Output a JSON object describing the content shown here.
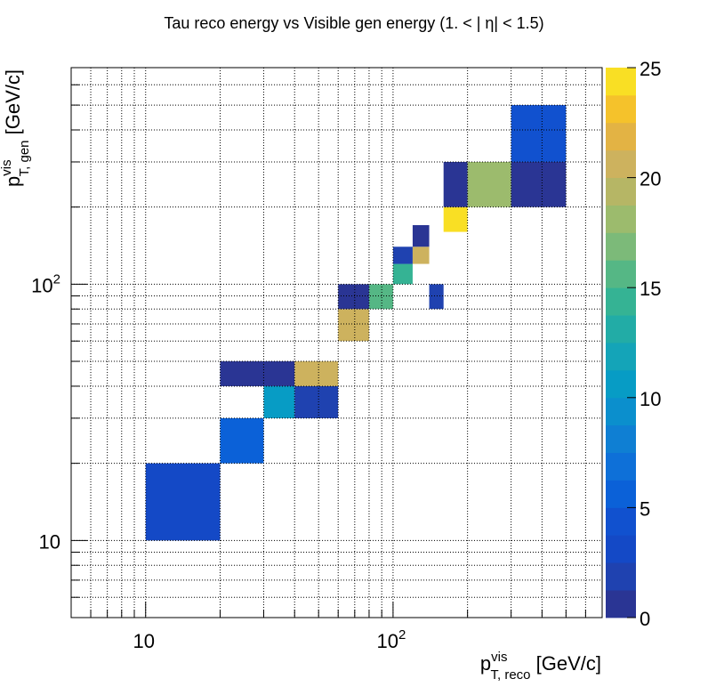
{
  "chart_data": {
    "type": "heatmap",
    "title": "Tau reco energy vs Visible gen energy (1. < |   η| < 1.5)",
    "xlabel": {
      "base": "p",
      "sup": "vis",
      "sub": "T, reco",
      "unit": " [GeV/c]"
    },
    "ylabel": {
      "base": "p",
      "sup": "vis",
      "sub": "T, gen",
      "unit": " [GeV/c]"
    },
    "x_scale": "log",
    "y_scale": "log",
    "xlim": [
      5,
      700
    ],
    "ylim": [
      5,
      700
    ],
    "x_tick_labels": [
      {
        "value": 10,
        "label": "10"
      },
      {
        "value": 100,
        "label": "10",
        "exp": "2"
      }
    ],
    "y_tick_labels": [
      {
        "value": 10,
        "label": "10"
      },
      {
        "value": 100,
        "label": "10",
        "exp": "2"
      }
    ],
    "grid": true,
    "colorbar": {
      "min": 0,
      "max": 25,
      "levels": 20,
      "ticks": [
        "0",
        "5",
        "10",
        "15",
        "20",
        "25"
      ],
      "palette": [
        "#2a3594",
        "#1f42b0",
        "#1449c6",
        "#1151cf",
        "#0b61d8",
        "#0e70d8",
        "#0f7fd3",
        "#0b8fcd",
        "#079cc5",
        "#14a4b8",
        "#22aca6",
        "#35b394",
        "#55b785",
        "#7cba79",
        "#9cbb6d",
        "#b6b665",
        "#cdb25e",
        "#e3b344",
        "#f5c22b",
        "#f9df24",
        "#f9fb0e"
      ]
    },
    "cells": [
      {
        "x0": 10,
        "x1": 20,
        "y0": 10,
        "y1": 20,
        "value": 2.5
      },
      {
        "x0": 20,
        "x1": 30,
        "y0": 20,
        "y1": 30,
        "value": 5.0
      },
      {
        "x0": 20,
        "x1": 40,
        "y0": 40,
        "y1": 50,
        "value": 1.0
      },
      {
        "x0": 30,
        "x1": 40,
        "y0": 30,
        "y1": 40,
        "value": 10.5
      },
      {
        "x0": 40,
        "x1": 60,
        "y0": 30,
        "y1": 40,
        "value": 1.5
      },
      {
        "x0": 40,
        "x1": 60,
        "y0": 40,
        "y1": 50,
        "value": 21.0
      },
      {
        "x0": 60,
        "x1": 80,
        "y0": 60,
        "y1": 80,
        "value": 21.0
      },
      {
        "x0": 60,
        "x1": 80,
        "y0": 80,
        "y1": 100,
        "value": 1.0
      },
      {
        "x0": 80,
        "x1": 100,
        "y0": 80,
        "y1": 100,
        "value": 15.5
      },
      {
        "x0": 100,
        "x1": 120,
        "y0": 100,
        "y1": 120,
        "value": 14.5
      },
      {
        "x0": 100,
        "x1": 120,
        "y0": 120,
        "y1": 140,
        "value": 1.5
      },
      {
        "x0": 120,
        "x1": 140,
        "y0": 120,
        "y1": 140,
        "value": 20.5
      },
      {
        "x0": 120,
        "x1": 140,
        "y0": 140,
        "y1": 170,
        "value": 1.0
      },
      {
        "x0": 140,
        "x1": 160,
        "y0": 80,
        "y1": 100,
        "value": 1.5
      },
      {
        "x0": 160,
        "x1": 200,
        "y0": 160,
        "y1": 200,
        "value": 24.5
      },
      {
        "x0": 160,
        "x1": 200,
        "y0": 200,
        "y1": 300,
        "value": 1.0
      },
      {
        "x0": 200,
        "x1": 300,
        "y0": 200,
        "y1": 300,
        "value": 17.5
      },
      {
        "x0": 300,
        "x1": 500,
        "y0": 200,
        "y1": 300,
        "value": 1.0
      },
      {
        "x0": 300,
        "x1": 500,
        "y0": 300,
        "y1": 500,
        "value": 4.5
      }
    ]
  }
}
